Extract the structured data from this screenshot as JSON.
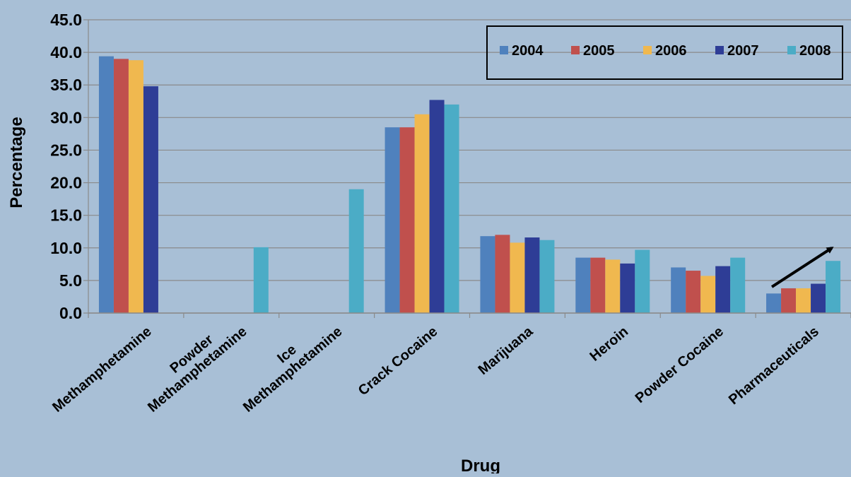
{
  "chart_data": {
    "type": "bar",
    "title": "",
    "xlabel": "Drug",
    "ylabel": "Percentage",
    "ylim": [
      0,
      45
    ],
    "y_ticks": [
      "0.0",
      "5.0",
      "10.0",
      "15.0",
      "20.0",
      "25.0",
      "30.0",
      "35.0",
      "40.0",
      "45.0"
    ],
    "grid": true,
    "legend_position": "top-right",
    "categories": [
      [
        "Methamphetamine"
      ],
      [
        "Powder",
        "Methamphetamine"
      ],
      [
        "Ice",
        "Methamphetamine"
      ],
      [
        "Crack Cocaine"
      ],
      [
        "Marijuana"
      ],
      [
        "Heroin"
      ],
      [
        "Powder Cocaine"
      ],
      [
        "Pharmaceuticals"
      ]
    ],
    "series": [
      {
        "name": "2004",
        "color": "#4f81bd",
        "values": [
          39.4,
          null,
          null,
          28.5,
          11.8,
          8.5,
          7.0,
          3.0
        ]
      },
      {
        "name": "2005",
        "color": "#c0504d",
        "values": [
          39.0,
          null,
          null,
          28.5,
          12.0,
          8.5,
          6.5,
          3.8
        ]
      },
      {
        "name": "2006",
        "color": "#f0b84f",
        "values": [
          38.8,
          null,
          null,
          30.5,
          10.8,
          8.2,
          5.7,
          3.8
        ]
      },
      {
        "name": "2007",
        "color": "#2e3d96",
        "values": [
          34.8,
          null,
          null,
          32.7,
          11.6,
          7.6,
          7.2,
          4.5
        ]
      },
      {
        "name": "2008",
        "color": "#4bacc6",
        "values": [
          null,
          10.1,
          19.0,
          32.0,
          11.2,
          9.7,
          8.5,
          8.0
        ]
      }
    ],
    "annotations": [
      {
        "type": "arrow",
        "category": "Pharmaceuticals",
        "from_value": 3.8,
        "to_value": 10.0
      }
    ]
  }
}
